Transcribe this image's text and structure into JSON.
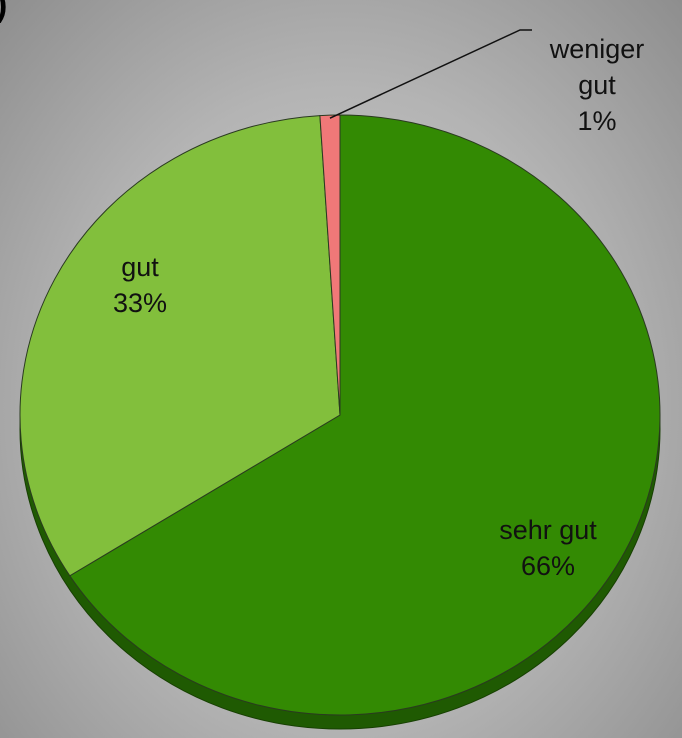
{
  "chart_data": {
    "type": "pie",
    "title": ")",
    "categories": [
      "sehr gut",
      "gut",
      "weniger gut"
    ],
    "values": [
      66,
      33,
      1
    ],
    "value_labels": [
      "66%",
      "33%",
      "1%"
    ],
    "colors": [
      "#338a03",
      "#82bf3c",
      "#f07878"
    ]
  }
}
